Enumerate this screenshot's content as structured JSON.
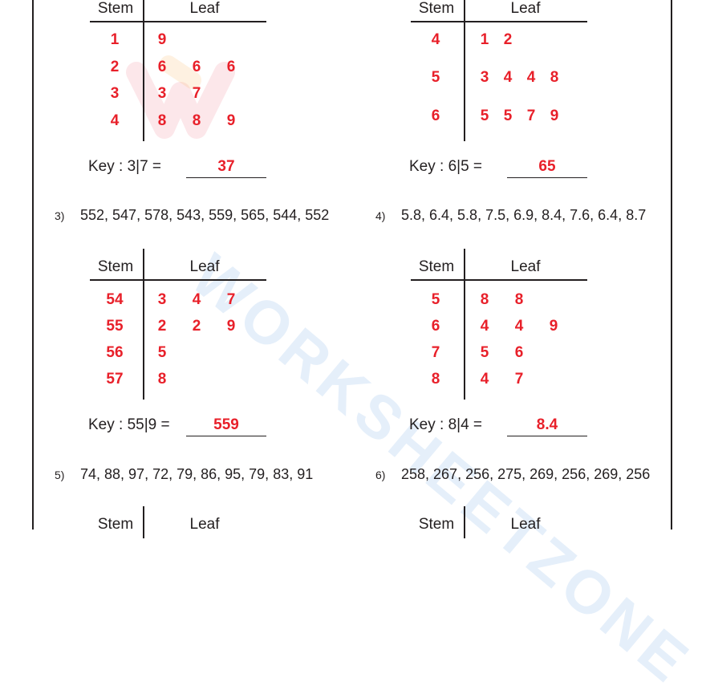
{
  "headers": {
    "stem": "Stem",
    "leaf": "Leaf"
  },
  "watermark": "WORKSHEETZONE",
  "plots": [
    {
      "id": "plot-1",
      "rows": [
        {
          "stem": "1",
          "leaves": [
            "9"
          ]
        },
        {
          "stem": "2",
          "leaves": [
            "6",
            "6",
            "6"
          ]
        },
        {
          "stem": "3",
          "leaves": [
            "3",
            "7"
          ]
        },
        {
          "stem": "4",
          "leaves": [
            "8",
            "8",
            "9"
          ]
        }
      ],
      "key": {
        "label": "Key :  3|7  =",
        "answer": "37"
      }
    },
    {
      "id": "plot-2",
      "rows": [
        {
          "stem": "4",
          "leaves": [
            "1",
            "2"
          ]
        },
        {
          "stem": "5",
          "leaves": [
            "3",
            "4",
            "4",
            "8"
          ]
        },
        {
          "stem": "6",
          "leaves": [
            "5",
            "5",
            "7",
            "9"
          ]
        }
      ],
      "key": {
        "label": "Key :  6|5  =",
        "answer": "65"
      }
    },
    {
      "id": "plot-3",
      "rows": [
        {
          "stem": "54",
          "leaves": [
            "3",
            "4",
            "7"
          ]
        },
        {
          "stem": "55",
          "leaves": [
            "2",
            "2",
            "9"
          ]
        },
        {
          "stem": "56",
          "leaves": [
            "5"
          ]
        },
        {
          "stem": "57",
          "leaves": [
            "8"
          ]
        }
      ],
      "key": {
        "label": "Key : 55|9  =",
        "answer": "559"
      }
    },
    {
      "id": "plot-4",
      "rows": [
        {
          "stem": "5",
          "leaves": [
            "8",
            "8"
          ]
        },
        {
          "stem": "6",
          "leaves": [
            "4",
            "4",
            "9"
          ]
        },
        {
          "stem": "7",
          "leaves": [
            "5",
            "6"
          ]
        },
        {
          "stem": "8",
          "leaves": [
            "4",
            "7"
          ]
        }
      ],
      "key": {
        "label": "Key :  8|4  =",
        "answer": "8.4"
      }
    }
  ],
  "problems": [
    {
      "number": "3)",
      "text": "552, 547, 578, 543, 559, 565, 544, 552"
    },
    {
      "number": "4)",
      "text": "5.8, 6.4, 5.8, 7.5, 6.9, 8.4, 7.6, 6.4, 8.7"
    },
    {
      "number": "5)",
      "text": "74, 88, 97, 72, 79, 86, 95, 79, 83, 91"
    },
    {
      "number": "6)",
      "text": "258, 267, 256, 275, 269, 256, 269, 256"
    }
  ]
}
